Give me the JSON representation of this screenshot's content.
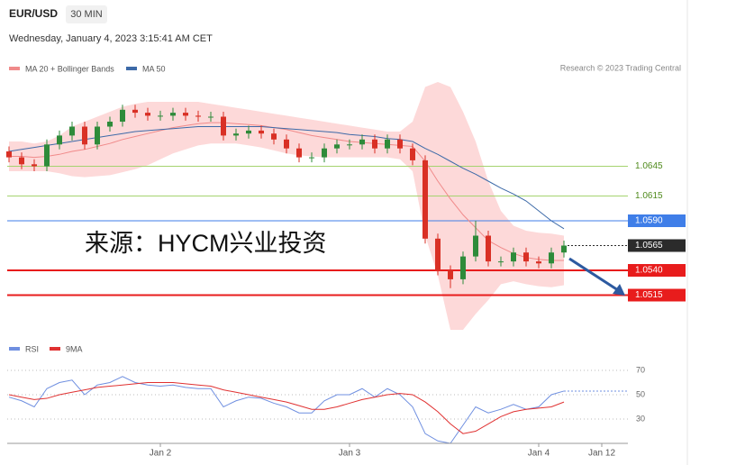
{
  "header": {
    "symbol": "EUR/USD",
    "interval": "30 MIN",
    "datetime": "Wednesday, January 4, 2023 3:15:41 AM CET"
  },
  "chart_data": [
    {
      "type": "candlestick",
      "credit": "Research © 2023 Trading Central",
      "watermark": "来源：HYCM兴业投资",
      "up_color": "#2e8b3a",
      "down_color": "#d93025",
      "categories": [
        null,
        null,
        null,
        null,
        null,
        null,
        null,
        null,
        null,
        null,
        null,
        null,
        "Jan 2",
        null,
        null,
        null,
        null,
        null,
        null,
        null,
        null,
        null,
        null,
        null,
        null,
        null,
        null,
        "Jan 3",
        null,
        null,
        null,
        null,
        null,
        null,
        null,
        null,
        null,
        null,
        null,
        null,
        null,
        null,
        "Jan 4",
        null,
        null,
        null,
        null,
        "Jan 12"
      ],
      "ohlc": {
        "open": [
          1.066,
          1.0654,
          1.0647,
          1.0645,
          1.0667,
          1.0676,
          1.0685,
          1.0667,
          1.0685,
          1.069,
          1.0702,
          1.0699,
          1.0696,
          1.0696,
          1.0699,
          1.0696,
          1.0695,
          1.0695,
          1.0676,
          1.0678,
          1.0681,
          1.0678,
          1.0672,
          1.0663,
          1.0654,
          1.0654,
          1.0663,
          1.0667,
          1.0667,
          1.0672,
          1.0663,
          1.0672,
          1.0663,
          1.0651,
          1.0572,
          1.054,
          1.0531,
          1.0554,
          1.0575,
          1.0549,
          1.0549,
          1.0558,
          1.0549,
          1.0547,
          1.0558,
          null,
          null,
          null
        ],
        "high": [
          1.0665,
          1.0659,
          1.0652,
          1.0672,
          1.0681,
          1.069,
          1.069,
          1.069,
          1.0695,
          1.0707,
          1.0707,
          1.0704,
          1.0701,
          1.0704,
          1.0704,
          1.0701,
          1.07,
          1.07,
          1.0683,
          1.0686,
          1.0686,
          1.0683,
          1.0677,
          1.0668,
          1.0659,
          1.0668,
          1.0672,
          1.0672,
          1.0677,
          1.0677,
          1.0677,
          1.0677,
          1.0668,
          1.0656,
          1.0577,
          1.0545,
          1.0559,
          1.059,
          1.058,
          1.0554,
          1.0563,
          1.0563,
          1.0554,
          1.0563,
          1.057,
          null,
          null,
          null
        ],
        "low": [
          1.0649,
          1.0642,
          1.064,
          1.064,
          1.0662,
          1.0671,
          1.0662,
          1.0662,
          1.068,
          1.0685,
          1.0694,
          1.0691,
          1.0691,
          1.0691,
          1.0691,
          1.069,
          1.069,
          1.0671,
          1.0671,
          1.0673,
          1.0673,
          1.0667,
          1.0658,
          1.0649,
          1.0649,
          1.0649,
          1.0658,
          1.0662,
          1.0662,
          1.0658,
          1.0658,
          1.0658,
          1.0646,
          1.0567,
          1.0535,
          1.0522,
          1.0526,
          1.0549,
          1.0544,
          1.0544,
          1.0544,
          1.0544,
          1.0542,
          1.0542,
          1.0553,
          null,
          null,
          null
        ],
        "close": [
          1.0654,
          1.0647,
          1.0645,
          1.0667,
          1.0676,
          1.0685,
          1.0667,
          1.0685,
          1.069,
          1.0702,
          1.0699,
          1.0696,
          1.0696,
          1.0699,
          1.0696,
          1.0695,
          1.0695,
          1.0676,
          1.0678,
          1.0681,
          1.0678,
          1.0672,
          1.0663,
          1.0654,
          1.0654,
          1.0663,
          1.0667,
          1.0667,
          1.0672,
          1.0663,
          1.0672,
          1.0663,
          1.0651,
          1.0572,
          1.054,
          1.0531,
          1.0554,
          1.0575,
          1.0549,
          1.0549,
          1.0558,
          1.0549,
          1.0547,
          1.0558,
          1.0565,
          null,
          null,
          null
        ]
      },
      "series": [
        {
          "name": "MA 20 + Bollinger Bands",
          "color": "#f08a8a",
          "values": [
            1.0655,
            1.0655,
            1.0654,
            1.0655,
            1.0657,
            1.066,
            1.0662,
            1.0665,
            1.0668,
            1.0672,
            1.0675,
            1.0678,
            1.0681,
            1.0684,
            1.0686,
            1.0688,
            1.0689,
            1.0689,
            1.0688,
            1.0687,
            1.0686,
            1.0684,
            1.0682,
            1.0679,
            1.0676,
            1.0674,
            1.0672,
            1.067,
            1.0669,
            1.0668,
            1.0667,
            1.0666,
            1.0665,
            1.065,
            1.063,
            1.0612,
            1.0596,
            1.0583,
            1.057,
            1.0563,
            1.0557,
            1.0553,
            1.0551,
            1.055,
            1.055,
            null,
            null,
            null
          ]
        },
        {
          "name": "MA 50",
          "color": "#3d6aa8",
          "values": [
            1.066,
            1.0662,
            1.0664,
            1.0666,
            1.0668,
            1.067,
            1.0672,
            1.0674,
            1.0676,
            1.0678,
            1.068,
            1.0681,
            1.0682,
            1.0683,
            1.0684,
            1.0685,
            1.0685,
            1.0685,
            1.0685,
            1.0685,
            1.0685,
            1.0684,
            1.0683,
            1.0682,
            1.0681,
            1.068,
            1.0679,
            1.0677,
            1.0676,
            1.0675,
            1.0673,
            1.0672,
            1.067,
            1.0663,
            1.0657,
            1.065,
            1.0643,
            1.0637,
            1.063,
            1.0623,
            1.0617,
            1.061,
            1.06,
            1.059,
            1.0582,
            null,
            null,
            null
          ]
        }
      ],
      "bands": {
        "color": "#fdd9d9",
        "upper": [
          1.067,
          1.067,
          1.0668,
          1.067,
          1.0676,
          1.0685,
          1.069,
          1.0695,
          1.07,
          1.0705,
          1.0708,
          1.071,
          1.071,
          1.071,
          1.071,
          1.071,
          1.0708,
          1.0706,
          1.0704,
          1.0702,
          1.07,
          1.0698,
          1.0696,
          1.0694,
          1.0692,
          1.069,
          1.0688,
          1.0686,
          1.0684,
          1.0682,
          1.068,
          1.068,
          1.069,
          1.0725,
          1.073,
          1.0725,
          1.07,
          1.067,
          1.063,
          1.06,
          1.0585,
          1.058,
          1.0578,
          1.0577,
          1.0575,
          null,
          null,
          null
        ],
        "lower": [
          1.064,
          1.064,
          1.064,
          1.064,
          1.0638,
          1.0635,
          1.0634,
          1.0635,
          1.0636,
          1.0639,
          1.0642,
          1.0646,
          1.0652,
          1.0658,
          1.0662,
          1.0666,
          1.0668,
          1.0668,
          1.0668,
          1.0666,
          1.0664,
          1.0661,
          1.0658,
          1.0656,
          1.0655,
          1.0654,
          1.0654,
          1.0654,
          1.0654,
          1.0654,
          1.0654,
          1.0652,
          1.064,
          1.0575,
          1.0535,
          1.048,
          1.048,
          1.0496,
          1.051,
          1.0526,
          1.0529,
          1.0526,
          1.0524,
          1.0523,
          1.0525,
          null,
          null,
          null
        ]
      },
      "ylim": [
        1.0471,
        1.0735
      ],
      "levels": [
        {
          "value": 1.0645,
          "color": "#a5d36f",
          "text_color": "#4f8a1c",
          "label_box": false
        },
        {
          "value": 1.0615,
          "color": "#a5d36f",
          "text_color": "#4f8a1c",
          "label_box": false
        },
        {
          "value": 1.059,
          "label": "1.0590",
          "color": "#3f7ee8",
          "text_color": "#ffffff",
          "label_box": true
        },
        {
          "value": 1.0565,
          "color": "#2b2b2b",
          "text_color": "#ffffff",
          "label_box": true,
          "dashed": true
        },
        {
          "value": 1.054,
          "label": "1.0540",
          "color": "#e81c1c",
          "text_color": "#ffffff",
          "label_box": true
        },
        {
          "value": 1.0515,
          "color": "#e81c1c",
          "text_color": "#ffffff",
          "label_box": true
        }
      ]
    },
    {
      "type": "line",
      "ylim": [
        10,
        80
      ],
      "yticks": [
        70,
        50,
        30
      ],
      "series": [
        {
          "name": "RSI",
          "color": "#6f8fe0",
          "values": [
            48,
            45,
            40,
            55,
            60,
            62,
            50,
            58,
            60,
            65,
            60,
            58,
            57,
            58,
            56,
            55,
            55,
            40,
            45,
            48,
            47,
            43,
            40,
            35,
            35,
            45,
            50,
            50,
            55,
            48,
            55,
            50,
            40,
            18,
            12,
            10,
            25,
            40,
            35,
            38,
            42,
            38,
            40,
            50,
            53,
            null,
            null,
            null
          ]
        },
        {
          "name": "9MA",
          "color": "#e03131",
          "values": [
            50,
            48,
            46,
            47,
            50,
            52,
            54,
            56,
            57,
            58,
            59,
            60,
            60,
            60,
            59,
            58,
            57,
            54,
            52,
            50,
            48,
            46,
            44,
            41,
            38,
            38,
            40,
            43,
            46,
            48,
            50,
            51,
            50,
            44,
            36,
            26,
            18,
            20,
            26,
            32,
            36,
            38,
            39,
            40,
            44,
            null,
            null,
            null
          ]
        }
      ]
    }
  ]
}
